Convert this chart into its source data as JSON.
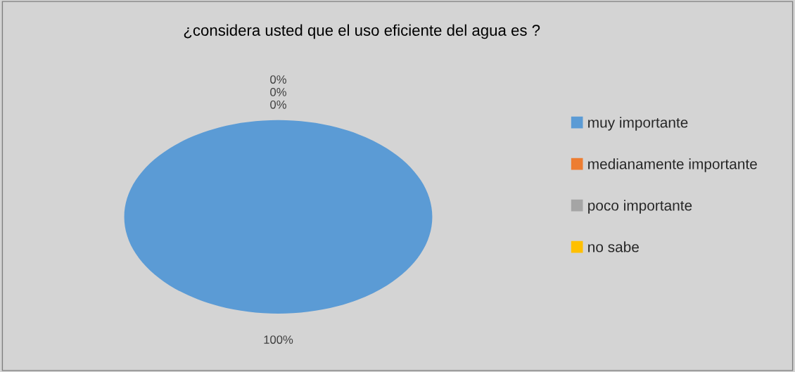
{
  "chart_data": {
    "type": "pie",
    "title": "¿considera usted que el uso eficiente del agua es ?",
    "categories": [
      "muy importante",
      "medianamente importante",
      "poco importante",
      "no sabe"
    ],
    "values": [
      100,
      0,
      0,
      0
    ],
    "colors": [
      "#5b9bd5",
      "#ed7d31",
      "#a5a5a5",
      "#ffc000"
    ],
    "value_labels": [
      "100%",
      "0%",
      "0%",
      "0%"
    ],
    "legend": "right"
  }
}
